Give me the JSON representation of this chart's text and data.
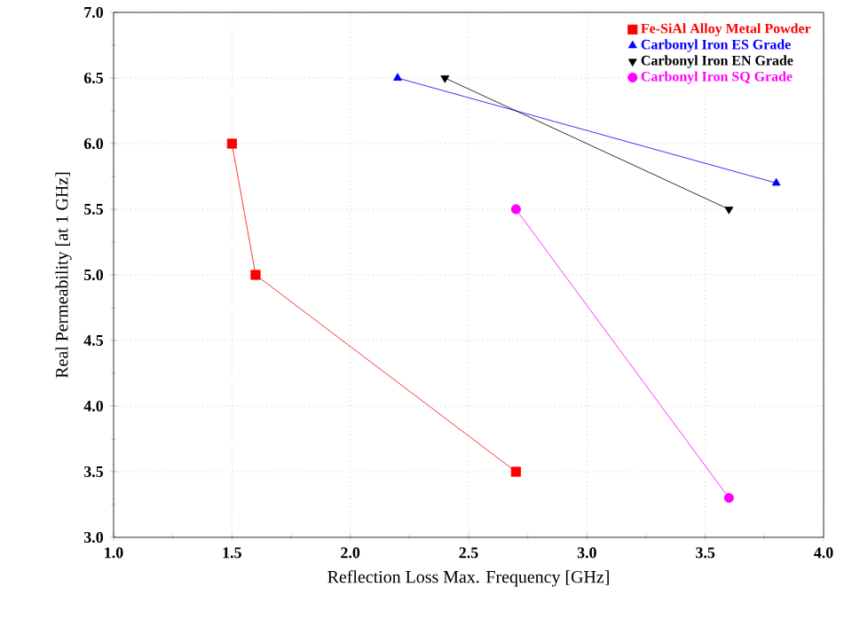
{
  "chart_data": {
    "type": "line",
    "xlabel": "Reflection Loss Max. Frequency [GHz]",
    "ylabel": "Real Permeability [at 1 GHz]",
    "xlim": [
      1.0,
      4.0
    ],
    "ylim": [
      3.0,
      7.0
    ],
    "xticks": [
      {
        "value": 1.0,
        "label": "1.0"
      },
      {
        "value": 1.5,
        "label": "1.5"
      },
      {
        "value": 2.0,
        "label": "2.0"
      },
      {
        "value": 2.5,
        "label": "2.5"
      },
      {
        "value": 3.0,
        "label": "3.0"
      },
      {
        "value": 3.5,
        "label": "3.5"
      },
      {
        "value": 4.0,
        "label": "4.0"
      }
    ],
    "yticks": [
      {
        "value": 3.0,
        "label": "3.0"
      },
      {
        "value": 3.5,
        "label": "3.5"
      },
      {
        "value": 4.0,
        "label": "4.0"
      },
      {
        "value": 4.5,
        "label": "4.5"
      },
      {
        "value": 5.0,
        "label": "5.0"
      },
      {
        "value": 5.5,
        "label": "5.5"
      },
      {
        "value": 6.0,
        "label": "6.0"
      },
      {
        "value": 6.5,
        "label": "6.5"
      },
      {
        "value": 7.0,
        "label": "7.0"
      }
    ],
    "grid": true,
    "legend": "top right",
    "series": [
      {
        "name": "Fe-SiAl Alloy Metal Powder",
        "color": "#ff0000",
        "marker": "square",
        "x": [
          1.5,
          1.6,
          2.7
        ],
        "values": [
          6.0,
          5.0,
          3.5
        ]
      },
      {
        "name": "Carbonyl Iron ES Grade",
        "color": "#0000ff",
        "marker": "triangle",
        "x": [
          2.2,
          3.8
        ],
        "values": [
          6.5,
          5.7
        ]
      },
      {
        "name": "Carbonyl Iron EN Grade",
        "color": "#000000",
        "marker": "triangle down",
        "x": [
          2.4,
          3.6
        ],
        "values": [
          6.5,
          5.5
        ]
      },
      {
        "name": "Carbonyl Iron SQ Grade",
        "color": "#ff00ff",
        "marker": "circle",
        "x": [
          2.7,
          3.6
        ],
        "values": [
          5.5,
          3.3
        ]
      }
    ]
  }
}
